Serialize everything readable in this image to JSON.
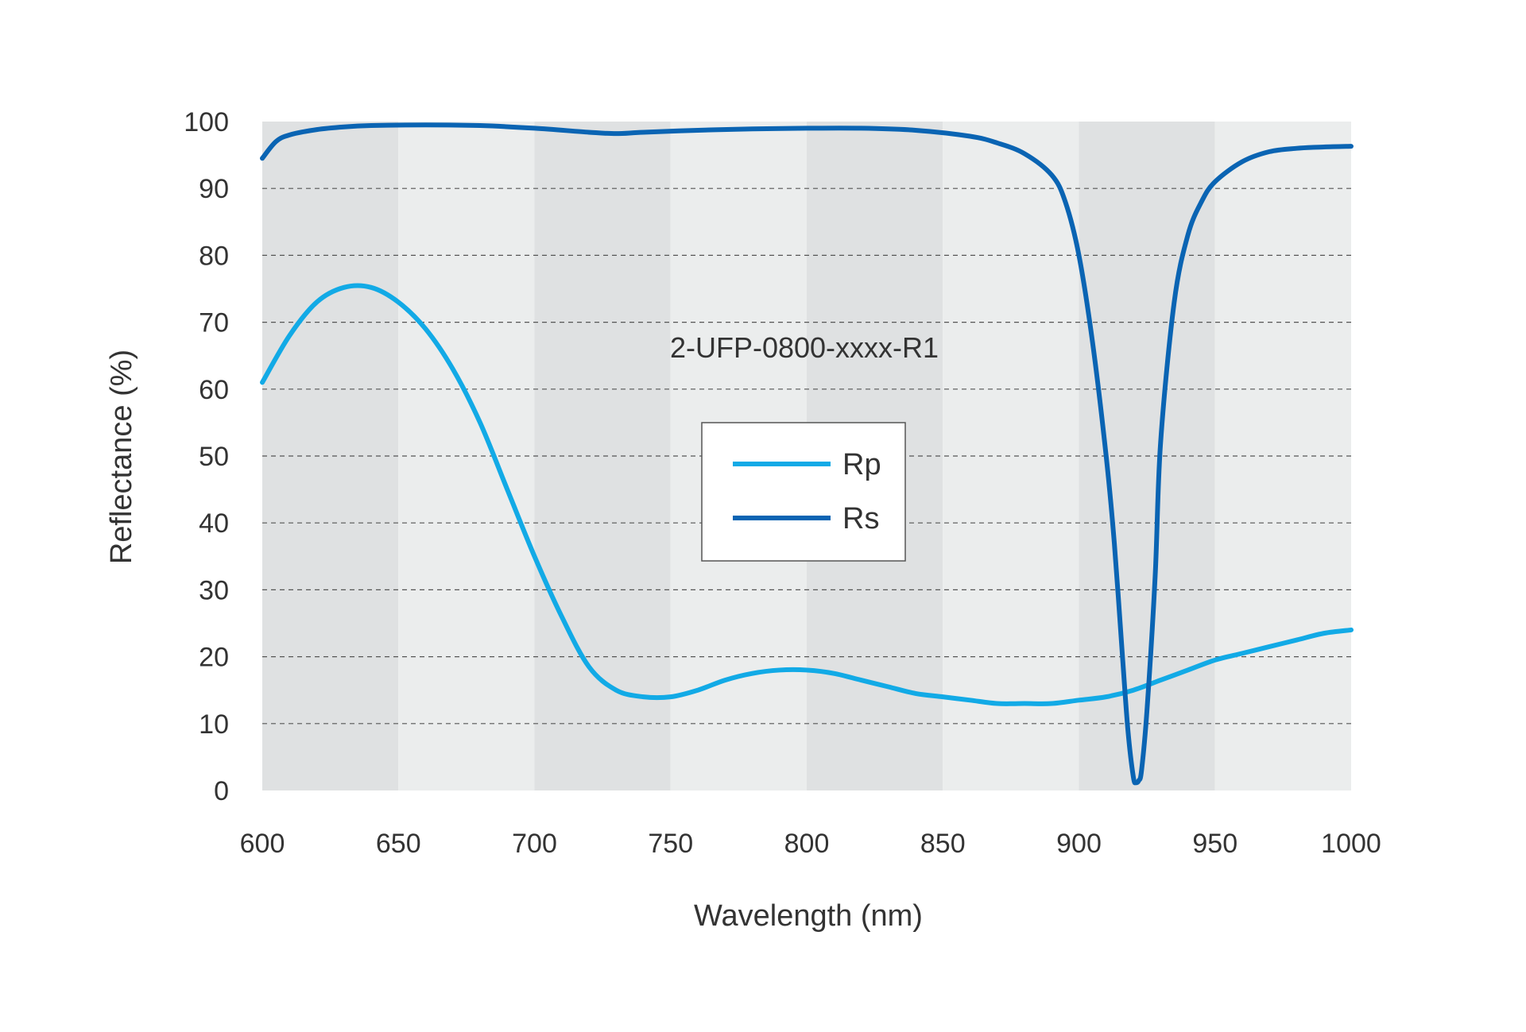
{
  "chart_data": {
    "type": "line",
    "annotation": "2-UFP-0800-xxxx-R1",
    "xlabel": "Wavelength (nm)",
    "ylabel": "Reflectance (%)",
    "xlim": [
      600,
      1000
    ],
    "ylim": [
      0,
      100
    ],
    "xticks": [
      600,
      650,
      700,
      750,
      800,
      850,
      900,
      950,
      1000
    ],
    "yticks": [
      0,
      10,
      20,
      30,
      40,
      50,
      60,
      70,
      80,
      90,
      100
    ],
    "grid": "horizontal dashed",
    "band_colors": [
      "#dfe1e2",
      "#ebeded"
    ],
    "legend_position": "center",
    "series": [
      {
        "name": "Rp",
        "color": "#12aae6",
        "x": [
          600,
          610,
          620,
          630,
          640,
          650,
          660,
          670,
          680,
          690,
          700,
          710,
          720,
          730,
          740,
          750,
          760,
          770,
          780,
          790,
          800,
          810,
          820,
          830,
          840,
          850,
          860,
          870,
          880,
          890,
          900,
          910,
          920,
          930,
          940,
          950,
          960,
          970,
          980,
          990,
          1000
        ],
        "y": [
          61,
          68,
          73,
          75.2,
          75.2,
          73,
          69,
          63,
          55,
          45,
          35,
          26,
          18.5,
          15,
          14,
          14,
          15,
          16.5,
          17.5,
          18,
          18,
          17.5,
          16.5,
          15.5,
          14.5,
          14,
          13.5,
          13,
          13,
          13,
          13.5,
          14,
          15,
          16.5,
          18,
          19.5,
          20.5,
          21.5,
          22.5,
          23.5,
          24
        ]
      },
      {
        "name": "Rs",
        "color": "#0a64b3",
        "x": [
          600,
          605,
          610,
          620,
          630,
          640,
          660,
          680,
          700,
          720,
          730,
          740,
          760,
          780,
          800,
          820,
          840,
          860,
          870,
          880,
          890,
          895,
          900,
          905,
          910,
          913,
          916,
          918,
          920,
          921,
          922,
          923,
          925,
          928,
          930,
          935,
          940,
          945,
          950,
          960,
          970,
          980,
          990,
          1000
        ],
        "y": [
          94.5,
          97,
          98,
          98.8,
          99.2,
          99.4,
          99.5,
          99.4,
          99,
          98.4,
          98.2,
          98.4,
          98.7,
          98.9,
          99,
          99,
          98.7,
          97.8,
          96.8,
          95.2,
          92,
          88,
          80,
          67,
          50,
          37,
          20,
          9,
          2,
          1.2,
          1.5,
          3,
          12,
          32,
          52,
          73,
          83,
          88,
          91,
          94,
          95.5,
          96,
          96.2,
          96.3
        ]
      }
    ]
  }
}
